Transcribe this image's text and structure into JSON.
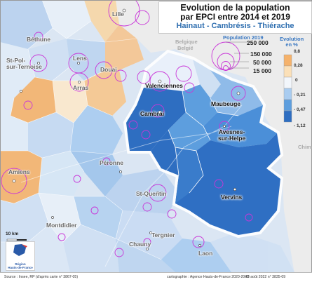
{
  "title": {
    "line1": "Evolution de la population",
    "line2": "par EPCI entre 2014 et 2019",
    "line3": "Hainaut - Cambrésis - Thiérache"
  },
  "countries": [
    "Belgique",
    "België"
  ],
  "cities": [
    {
      "name": "Lille",
      "focus": false
    },
    {
      "name": "Béthune",
      "focus": false
    },
    {
      "name": "Lens",
      "focus": false
    },
    {
      "name": "St-Pol-\nsur-Ternoise",
      "focus": false
    },
    {
      "name": "Douai",
      "focus": false
    },
    {
      "name": "Arras",
      "focus": false
    },
    {
      "name": "Valenciennes",
      "focus": true
    },
    {
      "name": "Maubeuge",
      "focus": true
    },
    {
      "name": "Cambrai",
      "focus": true
    },
    {
      "name": "Avesnes-\nsur-Helpe",
      "focus": true
    },
    {
      "name": "Chimay",
      "focus": false
    },
    {
      "name": "Amiens",
      "focus": false
    },
    {
      "name": "Péronne",
      "focus": false
    },
    {
      "name": "St-Quentin",
      "focus": false
    },
    {
      "name": "Vervins",
      "focus": true
    },
    {
      "name": "Montdidier",
      "focus": false
    },
    {
      "name": "Tergnier",
      "focus": false
    },
    {
      "name": "Chauny",
      "focus": false
    },
    {
      "name": "Laon",
      "focus": false
    }
  ],
  "legend_population": {
    "title": "Population 2019",
    "values": [
      "250 000",
      "150 000",
      "50 000",
      "15 000"
    ]
  },
  "legend_evolution": {
    "title": "Evolution\nen %",
    "class_breaks": [
      "0,8",
      "0,28",
      "0",
      "- 0,21",
      "- 0,47",
      "- 1,12"
    ],
    "colors": [
      "#f5b26b",
      "#fbe0b8",
      "#f2f6fb",
      "#a9ccf0",
      "#5d9ede",
      "#2e6ec1"
    ]
  },
  "scale_label": "10 km",
  "logo_text": "Région\nHauts-de-France",
  "footer": {
    "source": "Source : Insee, RP (d'après carte n° 3867-05)",
    "credits": "cartographie : Agence Hauts-de-France 2020-2040",
    "date": "23 août 2022 n° 3835-09"
  }
}
